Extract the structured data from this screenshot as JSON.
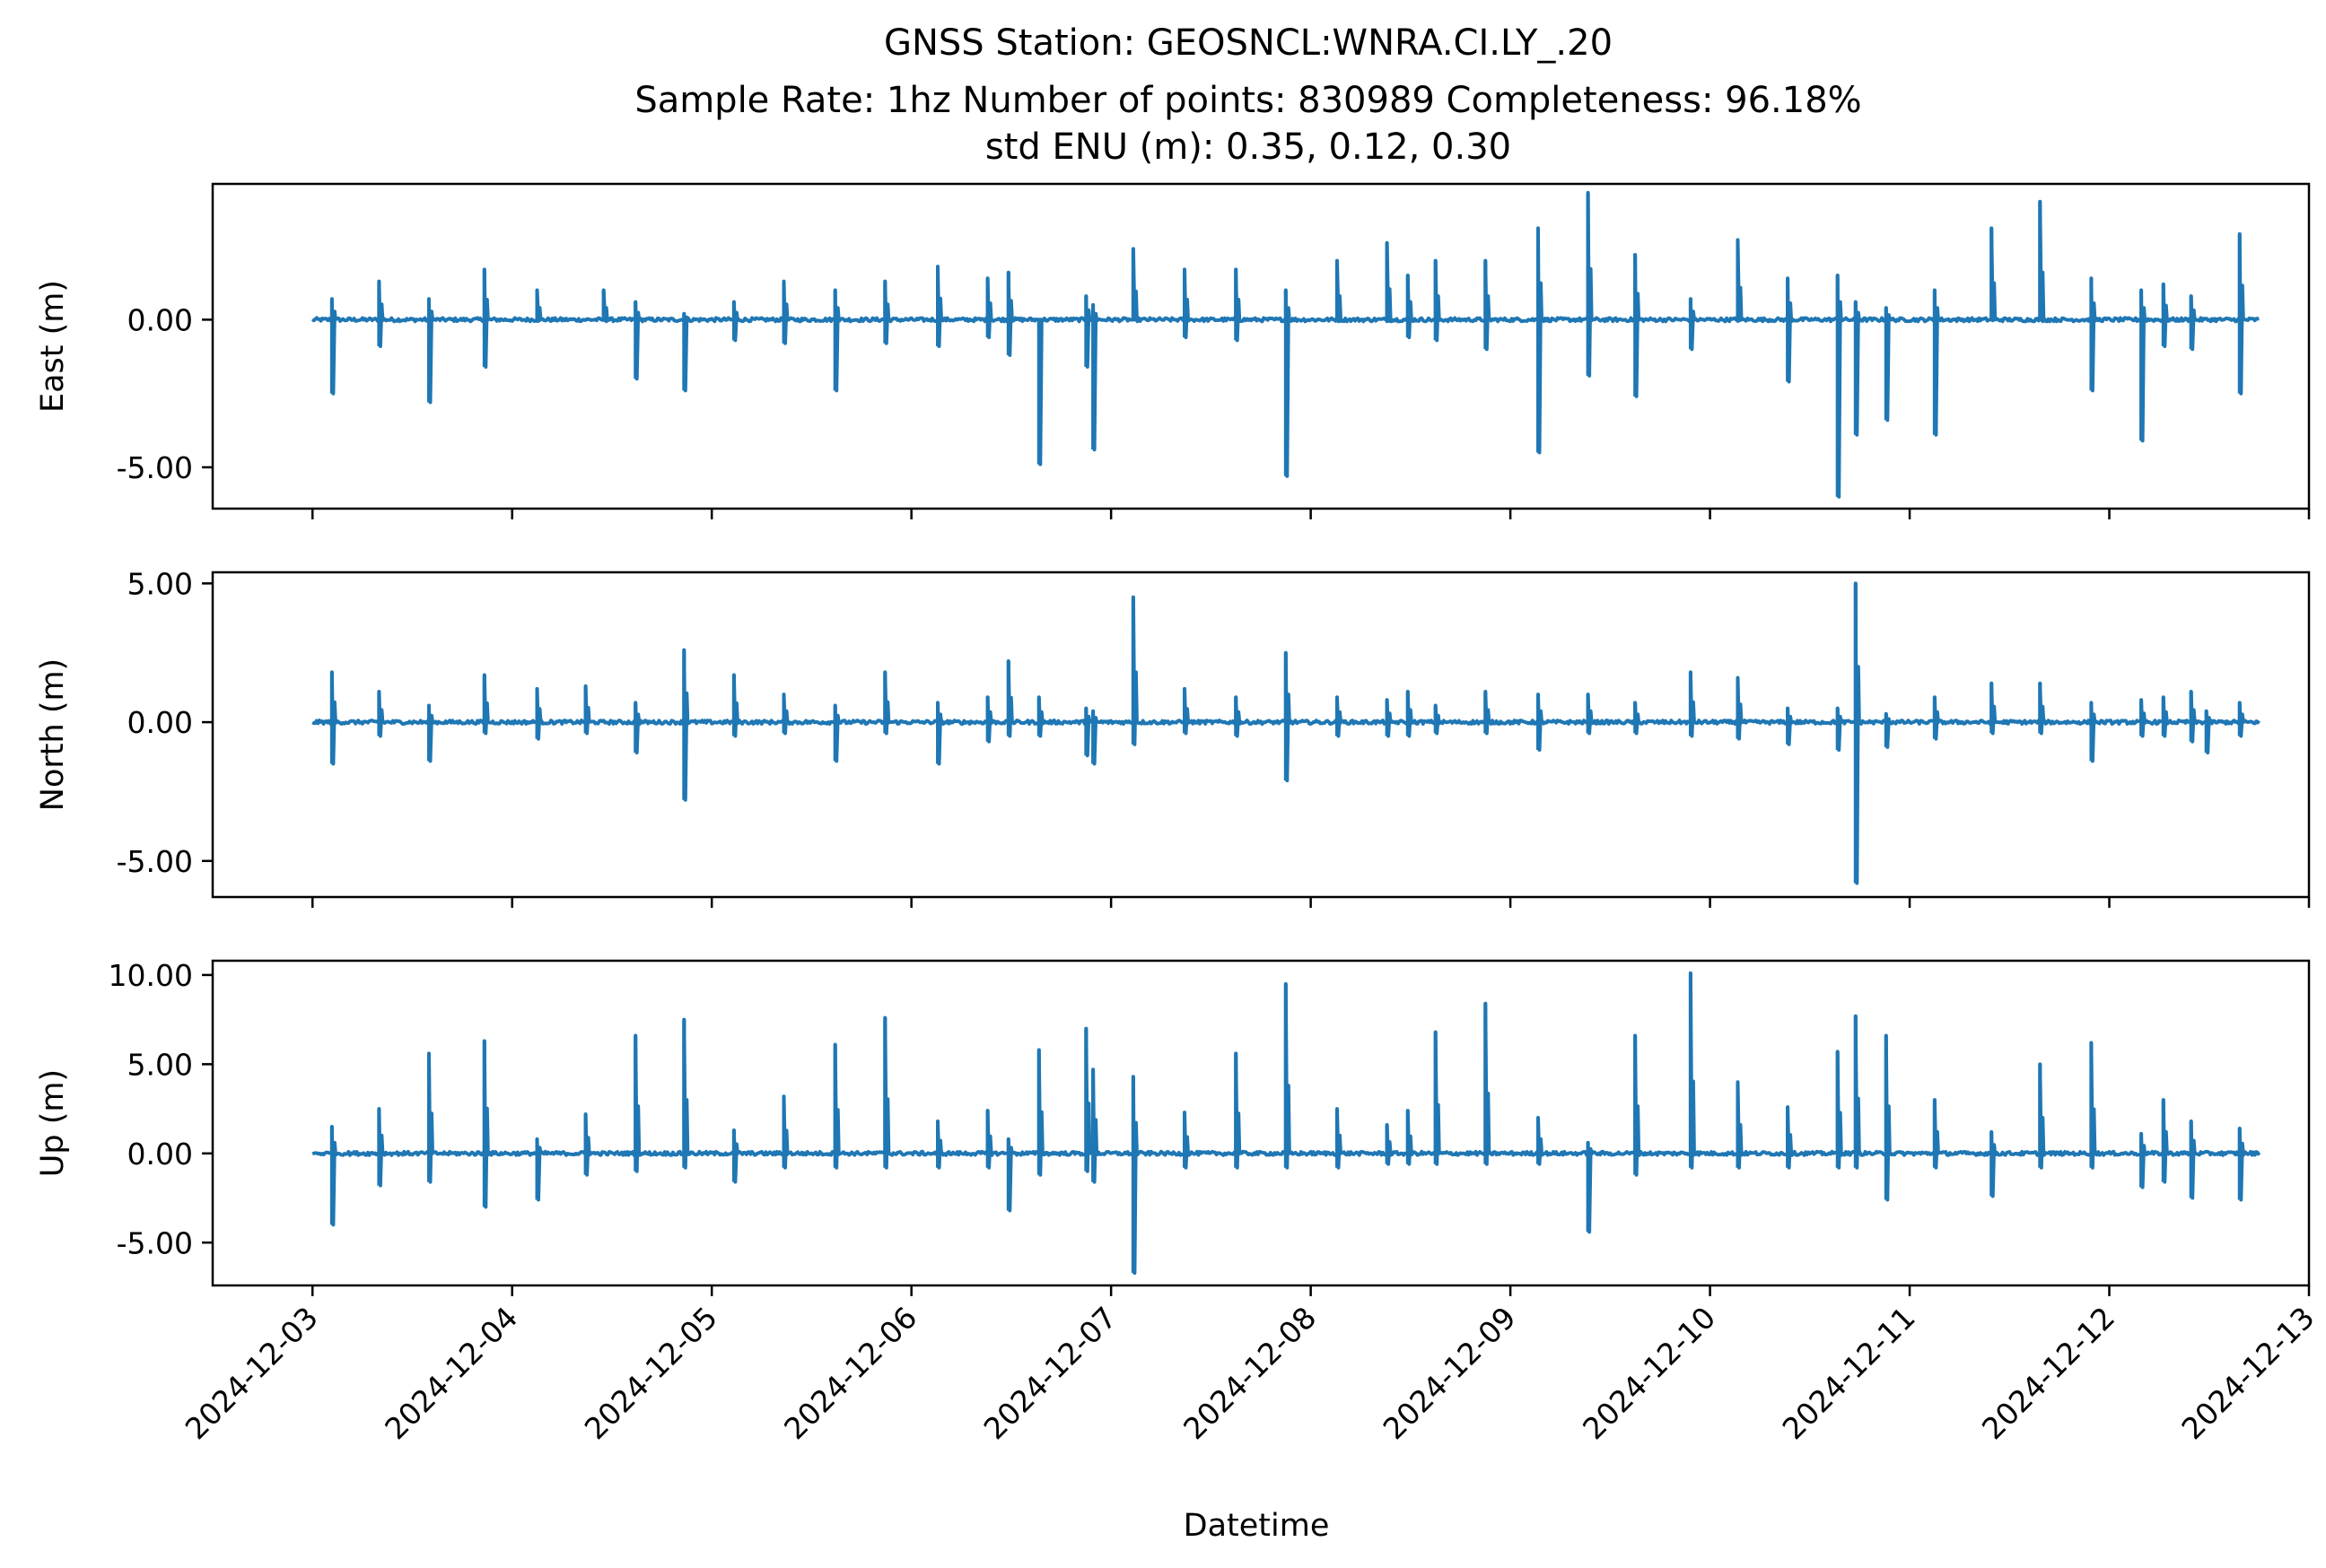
{
  "chart_data": {
    "type": "line",
    "title": [
      "GNSS Station: GEOSNCL:WNRA.CI.LY_.20",
      "Sample Rate: 1hz   Number of points: 830989    Completeness:  96.18%",
      "std ENU (m):  0.35, 0.12, 0.30"
    ],
    "xlabel": "Datetime",
    "xlim": [
      "2024-12-02T12:00",
      "2024-12-13T00:00"
    ],
    "x_ticks": [
      "2024-12-03",
      "2024-12-04",
      "2024-12-05",
      "2024-12-06",
      "2024-12-07",
      "2024-12-08",
      "2024-12-09",
      "2024-12-10",
      "2024-12-11",
      "2024-12-12",
      "2024-12-13"
    ],
    "data_start": "2024-12-03T00:00",
    "data_end": "2024-12-12T18:00",
    "line_color": "#1f77b4",
    "panels": [
      {
        "ylabel": "East (m)",
        "ylim": [
          -6.4,
          4.6
        ],
        "yticks": [
          0,
          -5
        ],
        "y_tick_labels": [
          "0.00",
          "-5.00"
        ],
        "spikes": [
          {
            "t": "2024-12-03T02:20",
            "min": -2.5,
            "max": 0.7
          },
          {
            "t": "2024-12-03T08:00",
            "min": -0.9,
            "max": 1.3
          },
          {
            "t": "2024-12-03T14:00",
            "min": -2.8,
            "max": 0.7
          },
          {
            "t": "2024-12-03T20:40",
            "min": -1.6,
            "max": 1.7
          },
          {
            "t": "2024-12-04T03:00",
            "min": 0.0,
            "max": 1.0
          },
          {
            "t": "2024-12-04T11:00",
            "min": 0.0,
            "max": 1.0
          },
          {
            "t": "2024-12-04T14:50",
            "min": -2.0,
            "max": 0.6
          },
          {
            "t": "2024-12-04T20:40",
            "min": -2.4,
            "max": 0.2
          },
          {
            "t": "2024-12-05T02:40",
            "min": -0.7,
            "max": 0.6
          },
          {
            "t": "2024-12-05T08:40",
            "min": -0.8,
            "max": 1.3
          },
          {
            "t": "2024-12-05T14:50",
            "min": -2.4,
            "max": 1.0
          },
          {
            "t": "2024-12-05T20:50",
            "min": -0.8,
            "max": 1.3
          },
          {
            "t": "2024-12-06T03:10",
            "min": -0.9,
            "max": 1.8
          },
          {
            "t": "2024-12-06T09:10",
            "min": -0.6,
            "max": 1.4
          },
          {
            "t": "2024-12-06T11:40",
            "min": -1.2,
            "max": 1.6
          },
          {
            "t": "2024-12-06T15:20",
            "min": -4.9,
            "max": 0.0
          },
          {
            "t": "2024-12-06T21:00",
            "min": -1.6,
            "max": 0.8
          },
          {
            "t": "2024-12-06T21:50",
            "min": -4.4,
            "max": 0.5
          },
          {
            "t": "2024-12-07T02:40",
            "min": 0.0,
            "max": 2.4
          },
          {
            "t": "2024-12-07T08:50",
            "min": -0.6,
            "max": 1.7
          },
          {
            "t": "2024-12-07T15:00",
            "min": -0.7,
            "max": 1.7
          },
          {
            "t": "2024-12-07T21:00",
            "min": -5.3,
            "max": 1.0
          },
          {
            "t": "2024-12-08T03:10",
            "min": 0.0,
            "max": 2.0
          },
          {
            "t": "2024-12-08T09:10",
            "min": 0.0,
            "max": 2.6
          },
          {
            "t": "2024-12-08T11:40",
            "min": -0.6,
            "max": 1.5
          },
          {
            "t": "2024-12-08T15:00",
            "min": -0.7,
            "max": 2.0
          },
          {
            "t": "2024-12-08T21:00",
            "min": -1.0,
            "max": 2.0
          },
          {
            "t": "2024-12-09T03:20",
            "min": -4.5,
            "max": 3.1
          },
          {
            "t": "2024-12-09T09:20",
            "min": -1.9,
            "max": 4.3
          },
          {
            "t": "2024-12-09T15:00",
            "min": -2.6,
            "max": 2.2
          },
          {
            "t": "2024-12-09T21:40",
            "min": -1.0,
            "max": 0.7
          },
          {
            "t": "2024-12-10T03:20",
            "min": 0.0,
            "max": 2.7
          },
          {
            "t": "2024-12-10T09:20",
            "min": -2.1,
            "max": 1.4
          },
          {
            "t": "2024-12-10T15:20",
            "min": -6.0,
            "max": 1.5
          },
          {
            "t": "2024-12-10T17:30",
            "min": -3.9,
            "max": 0.6
          },
          {
            "t": "2024-12-10T21:10",
            "min": -3.4,
            "max": 0.4
          },
          {
            "t": "2024-12-11T03:00",
            "min": -3.9,
            "max": 1.0
          },
          {
            "t": "2024-12-11T09:50",
            "min": 0.0,
            "max": 3.1
          },
          {
            "t": "2024-12-11T15:40",
            "min": 0.0,
            "max": 4.0
          },
          {
            "t": "2024-12-11T21:50",
            "min": -2.4,
            "max": 1.4
          },
          {
            "t": "2024-12-12T03:50",
            "min": -4.1,
            "max": 1.0
          },
          {
            "t": "2024-12-12T06:30",
            "min": -0.9,
            "max": 1.2
          },
          {
            "t": "2024-12-12T09:50",
            "min": -1.0,
            "max": 0.8
          },
          {
            "t": "2024-12-12T15:40",
            "min": -2.5,
            "max": 2.9
          }
        ]
      },
      {
        "ylabel": "North (m)",
        "ylim": [
          -6.3,
          5.4
        ],
        "yticks": [
          5,
          0,
          -5
        ],
        "y_tick_labels": [
          "5.00",
          "0.00",
          "-5.00"
        ],
        "spikes": [
          {
            "t": "2024-12-03T02:20",
            "min": -1.5,
            "max": 1.8
          },
          {
            "t": "2024-12-03T08:00",
            "min": -0.5,
            "max": 1.1
          },
          {
            "t": "2024-12-03T14:00",
            "min": -1.4,
            "max": 0.6
          },
          {
            "t": "2024-12-03T20:40",
            "min": -0.4,
            "max": 1.7
          },
          {
            "t": "2024-12-04T03:00",
            "min": -0.6,
            "max": 1.2
          },
          {
            "t": "2024-12-04T08:50",
            "min": -0.4,
            "max": 1.3
          },
          {
            "t": "2024-12-04T14:50",
            "min": -1.1,
            "max": 0.7
          },
          {
            "t": "2024-12-04T20:40",
            "min": -2.8,
            "max": 2.6
          },
          {
            "t": "2024-12-05T02:40",
            "min": -0.5,
            "max": 1.7
          },
          {
            "t": "2024-12-05T08:40",
            "min": -0.4,
            "max": 1.0
          },
          {
            "t": "2024-12-05T14:50",
            "min": -1.4,
            "max": 0.6
          },
          {
            "t": "2024-12-05T20:50",
            "min": -0.4,
            "max": 1.8
          },
          {
            "t": "2024-12-06T03:10",
            "min": -1.5,
            "max": 0.7
          },
          {
            "t": "2024-12-06T09:10",
            "min": -0.7,
            "max": 0.9
          },
          {
            "t": "2024-12-06T11:40",
            "min": -0.5,
            "max": 2.2
          },
          {
            "t": "2024-12-06T15:20",
            "min": -0.5,
            "max": 0.9
          },
          {
            "t": "2024-12-06T21:00",
            "min": -1.2,
            "max": 0.5
          },
          {
            "t": "2024-12-06T21:50",
            "min": -1.5,
            "max": 0.4
          },
          {
            "t": "2024-12-07T02:40",
            "min": -0.8,
            "max": 4.5
          },
          {
            "t": "2024-12-07T08:50",
            "min": -0.4,
            "max": 1.2
          },
          {
            "t": "2024-12-07T15:00",
            "min": -0.5,
            "max": 0.9
          },
          {
            "t": "2024-12-07T21:00",
            "min": -2.1,
            "max": 2.5
          },
          {
            "t": "2024-12-08T03:10",
            "min": -0.5,
            "max": 0.9
          },
          {
            "t": "2024-12-08T09:10",
            "min": -0.5,
            "max": 0.8
          },
          {
            "t": "2024-12-08T11:40",
            "min": -0.5,
            "max": 1.1
          },
          {
            "t": "2024-12-08T15:00",
            "min": -0.4,
            "max": 0.6
          },
          {
            "t": "2024-12-08T21:00",
            "min": -0.4,
            "max": 1.1
          },
          {
            "t": "2024-12-09T03:20",
            "min": -1.0,
            "max": 1.0
          },
          {
            "t": "2024-12-09T09:20",
            "min": -0.4,
            "max": 1.0
          },
          {
            "t": "2024-12-09T15:00",
            "min": -0.4,
            "max": 0.7
          },
          {
            "t": "2024-12-09T21:40",
            "min": -0.5,
            "max": 1.8
          },
          {
            "t": "2024-12-10T03:20",
            "min": -0.6,
            "max": 1.6
          },
          {
            "t": "2024-12-10T09:20",
            "min": -0.8,
            "max": 0.5
          },
          {
            "t": "2024-12-10T15:20",
            "min": -1.0,
            "max": 0.5
          },
          {
            "t": "2024-12-10T17:30",
            "min": -5.8,
            "max": 5.0
          },
          {
            "t": "2024-12-10T21:10",
            "min": -0.9,
            "max": 0.3
          },
          {
            "t": "2024-12-11T03:00",
            "min": -0.6,
            "max": 0.9
          },
          {
            "t": "2024-12-11T09:50",
            "min": -0.4,
            "max": 1.4
          },
          {
            "t": "2024-12-11T15:40",
            "min": -0.4,
            "max": 1.4
          },
          {
            "t": "2024-12-11T21:50",
            "min": -1.4,
            "max": 0.7
          },
          {
            "t": "2024-12-12T03:50",
            "min": -0.5,
            "max": 0.8
          },
          {
            "t": "2024-12-12T06:30",
            "min": -0.5,
            "max": 0.9
          },
          {
            "t": "2024-12-12T09:50",
            "min": -0.7,
            "max": 1.1
          },
          {
            "t": "2024-12-12T11:40",
            "min": -1.1,
            "max": 0.4
          },
          {
            "t": "2024-12-12T15:40",
            "min": -0.5,
            "max": 0.7
          }
        ]
      },
      {
        "ylabel": "Up (m)",
        "ylim": [
          -7.4,
          10.8
        ],
        "yticks": [
          10,
          5,
          0,
          -5
        ],
        "y_tick_labels": [
          "10.00",
          "5.00",
          "0.00",
          "-5.00"
        ],
        "spikes": [
          {
            "t": "2024-12-03T02:20",
            "min": -4.0,
            "max": 1.5
          },
          {
            "t": "2024-12-03T08:00",
            "min": -1.8,
            "max": 2.5
          },
          {
            "t": "2024-12-03T14:00",
            "min": -1.6,
            "max": 5.6
          },
          {
            "t": "2024-12-03T20:40",
            "min": -3.0,
            "max": 6.3
          },
          {
            "t": "2024-12-04T03:00",
            "min": -2.6,
            "max": 0.8
          },
          {
            "t": "2024-12-04T08:50",
            "min": -1.2,
            "max": 2.2
          },
          {
            "t": "2024-12-04T14:50",
            "min": -1.0,
            "max": 6.6
          },
          {
            "t": "2024-12-04T20:40",
            "min": -0.8,
            "max": 7.5
          },
          {
            "t": "2024-12-05T02:40",
            "min": -1.6,
            "max": 1.3
          },
          {
            "t": "2024-12-05T08:40",
            "min": -0.8,
            "max": 3.2
          },
          {
            "t": "2024-12-05T14:50",
            "min": -0.8,
            "max": 6.1
          },
          {
            "t": "2024-12-05T20:50",
            "min": -0.8,
            "max": 7.6
          },
          {
            "t": "2024-12-06T03:10",
            "min": -0.8,
            "max": 1.8
          },
          {
            "t": "2024-12-06T09:10",
            "min": -0.8,
            "max": 2.4
          },
          {
            "t": "2024-12-06T11:40",
            "min": -3.2,
            "max": 0.8
          },
          {
            "t": "2024-12-06T15:20",
            "min": -1.2,
            "max": 5.8
          },
          {
            "t": "2024-12-06T21:00",
            "min": -1.0,
            "max": 7.0
          },
          {
            "t": "2024-12-06T21:50",
            "min": -1.6,
            "max": 4.7
          },
          {
            "t": "2024-12-07T02:40",
            "min": -6.7,
            "max": 4.3
          },
          {
            "t": "2024-12-07T08:50",
            "min": -0.8,
            "max": 2.3
          },
          {
            "t": "2024-12-07T15:00",
            "min": -0.8,
            "max": 5.6
          },
          {
            "t": "2024-12-07T21:00",
            "min": -0.8,
            "max": 9.5
          },
          {
            "t": "2024-12-08T03:10",
            "min": -0.8,
            "max": 2.5
          },
          {
            "t": "2024-12-08T09:10",
            "min": -0.6,
            "max": 1.6
          },
          {
            "t": "2024-12-08T11:40",
            "min": -0.6,
            "max": 2.4
          },
          {
            "t": "2024-12-08T15:00",
            "min": -0.6,
            "max": 6.8
          },
          {
            "t": "2024-12-08T21:00",
            "min": -0.6,
            "max": 8.4
          },
          {
            "t": "2024-12-09T03:20",
            "min": -0.6,
            "max": 2.0
          },
          {
            "t": "2024-12-09T09:20",
            "min": -4.4,
            "max": 0.6
          },
          {
            "t": "2024-12-09T15:00",
            "min": -1.2,
            "max": 6.6
          },
          {
            "t": "2024-12-09T21:40",
            "min": -0.8,
            "max": 10.1
          },
          {
            "t": "2024-12-10T03:20",
            "min": -0.8,
            "max": 4.0
          },
          {
            "t": "2024-12-10T09:20",
            "min": -0.8,
            "max": 2.6
          },
          {
            "t": "2024-12-10T15:20",
            "min": -0.8,
            "max": 5.7
          },
          {
            "t": "2024-12-10T17:30",
            "min": -0.8,
            "max": 7.7
          },
          {
            "t": "2024-12-10T21:10",
            "min": -2.6,
            "max": 6.6
          },
          {
            "t": "2024-12-11T03:00",
            "min": -0.8,
            "max": 3.0
          },
          {
            "t": "2024-12-11T09:50",
            "min": -2.4,
            "max": 1.2
          },
          {
            "t": "2024-12-11T15:40",
            "min": -0.8,
            "max": 5.0
          },
          {
            "t": "2024-12-11T21:50",
            "min": -0.8,
            "max": 6.2
          },
          {
            "t": "2024-12-12T03:50",
            "min": -1.9,
            "max": 1.1
          },
          {
            "t": "2024-12-12T06:30",
            "min": -1.6,
            "max": 3.0
          },
          {
            "t": "2024-12-12T09:50",
            "min": -2.5,
            "max": 1.8
          },
          {
            "t": "2024-12-12T15:40",
            "min": -2.6,
            "max": 1.4
          }
        ]
      }
    ]
  }
}
